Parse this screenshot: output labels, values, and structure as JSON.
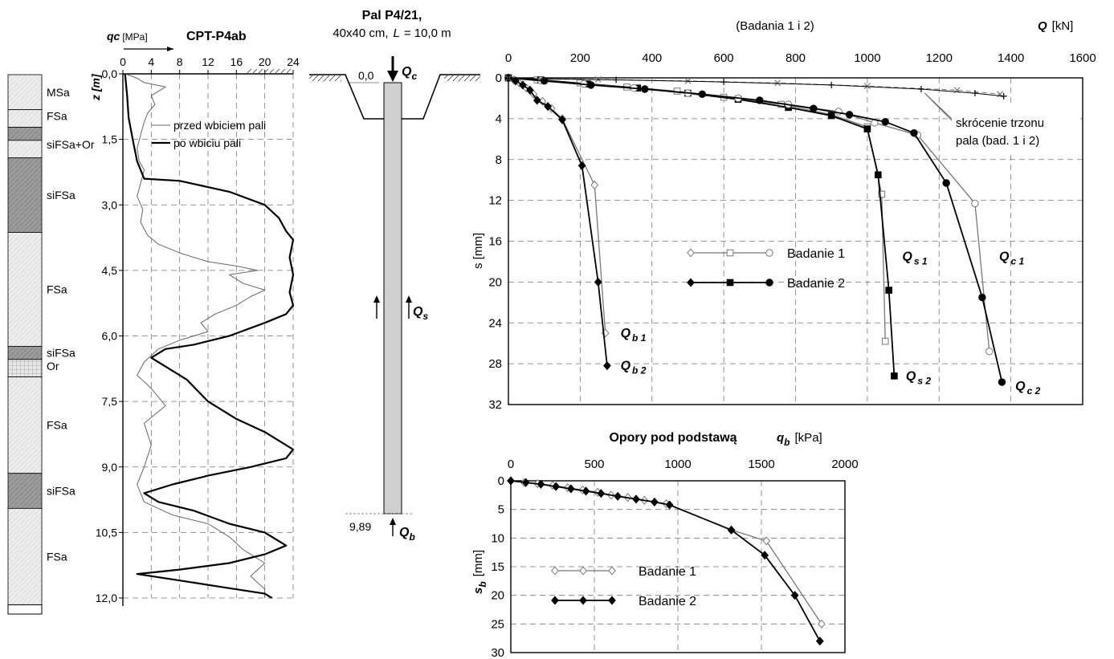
{
  "colors": {
    "badanie1": "#777777",
    "badanie2": "#000000",
    "before": "#666666",
    "after": "#000000",
    "pile": "#cfcfcf",
    "soil_light": "#ececec",
    "soil_dark": "#9a9a9a"
  },
  "soil_column": {
    "layers": [
      {
        "name": "MSa",
        "from": 0.0,
        "to": 0.8,
        "shade": "light"
      },
      {
        "name": "FSa",
        "from": 0.8,
        "to": 1.2,
        "shade": "light"
      },
      {
        "name": "",
        "from": 1.2,
        "to": 1.5,
        "shade": "dark"
      },
      {
        "name": "siFSa+Or",
        "from": 1.5,
        "to": 1.9,
        "shade": "light"
      },
      {
        "name": "siFSa",
        "from": 1.9,
        "to": 3.6,
        "shade": "dark"
      },
      {
        "name": "FSa",
        "from": 3.6,
        "to": 6.2,
        "shade": "light"
      },
      {
        "name": "siFSa",
        "from": 6.2,
        "to": 6.5,
        "shade": "dark"
      },
      {
        "name": "Or",
        "from": 6.5,
        "to": 6.9,
        "shade": "grid"
      },
      {
        "name": "FSa",
        "from": 6.9,
        "to": 9.1,
        "shade": "light"
      },
      {
        "name": "siFSa",
        "from": 9.1,
        "to": 9.9,
        "shade": "dark"
      },
      {
        "name": "FSa",
        "from": 9.9,
        "to": 12.1,
        "shade": "light"
      }
    ]
  },
  "pile_sketch": {
    "title": "Pal P4/21,",
    "subtitle_prefix": "40x40 cm,",
    "subtitle_l": "L",
    "subtitle_rest": "= 10,0 m",
    "top_level": "0,0",
    "bottom_level": "9,89",
    "force_top": "Q",
    "force_top_sub": "c",
    "force_shaft": "Q",
    "force_shaft_sub": "s",
    "force_base": "Q",
    "force_base_sub": "b"
  },
  "chart_data": [
    {
      "id": "cpt",
      "type": "line",
      "title": "CPT-P4ab",
      "xlabel_symbol": "qc",
      "xlabel_unit": "[MPa]",
      "ylabel": "z [m]",
      "xlim": [
        0,
        24
      ],
      "ylim": [
        0,
        12
      ],
      "y_inverted": true,
      "x_ticks": [
        0,
        4,
        8,
        12,
        16,
        20,
        24
      ],
      "y_ticks": [
        "0,0",
        "1,5",
        "3,0",
        "4,5",
        "6,0",
        "7,5",
        "9,0",
        "10,5",
        "12,0"
      ],
      "y_tick_values": [
        0,
        1.5,
        3,
        4.5,
        6,
        7.5,
        9,
        10.5,
        12
      ],
      "grid": true,
      "legend_position": "top-right",
      "series": [
        {
          "name": "przed wbiciem pali",
          "style": "thin",
          "points": [
            [
              0.3,
              0
            ],
            [
              2,
              0.1
            ],
            [
              3,
              0.2
            ],
            [
              6,
              0.3
            ],
            [
              4,
              0.5
            ],
            [
              4.5,
              0.7
            ],
            [
              3.5,
              0.9
            ],
            [
              3,
              1.1
            ],
            [
              2.5,
              1.4
            ],
            [
              2,
              1.7
            ],
            [
              2.3,
              2
            ],
            [
              3,
              2.2
            ],
            [
              2.5,
              2.5
            ],
            [
              2,
              2.8
            ],
            [
              2.8,
              3.1
            ],
            [
              2.5,
              3.4
            ],
            [
              3.5,
              3.7
            ],
            [
              5,
              3.9
            ],
            [
              8,
              4.1
            ],
            [
              12,
              4.3
            ],
            [
              16,
              4.4
            ],
            [
              19,
              4.5
            ],
            [
              15,
              4.6
            ],
            [
              17,
              4.8
            ],
            [
              20,
              4.95
            ],
            [
              18,
              5.1
            ],
            [
              16,
              5.3
            ],
            [
              13,
              5.5
            ],
            [
              11,
              5.7
            ],
            [
              12,
              5.9
            ],
            [
              8,
              6.1
            ],
            [
              5,
              6.3
            ],
            [
              3,
              6.6
            ],
            [
              2,
              6.9
            ],
            [
              4,
              7.2
            ],
            [
              6,
              7.6
            ],
            [
              3,
              8
            ],
            [
              4,
              8.5
            ],
            [
              3,
              9
            ],
            [
              2,
              9.4
            ],
            [
              3,
              9.8
            ],
            [
              7,
              10.1
            ],
            [
              12,
              10.3
            ],
            [
              15,
              10.6
            ],
            [
              17,
              10.9
            ],
            [
              20,
              11.2
            ],
            [
              18,
              11.5
            ],
            [
              20,
              11.8
            ],
            [
              20,
              12
            ]
          ]
        },
        {
          "name": "po wbiciu pali",
          "style": "thick",
          "points": [
            [
              0.3,
              0
            ],
            [
              0.6,
              0.5
            ],
            [
              0.8,
              1
            ],
            [
              1.5,
              1.6
            ],
            [
              2,
              2
            ],
            [
              3,
              2.4
            ],
            [
              8,
              2.45
            ],
            [
              15,
              2.7
            ],
            [
              20,
              3
            ],
            [
              22,
              3.3
            ],
            [
              23,
              3.6
            ],
            [
              24,
              3.8
            ],
            [
              23.5,
              4.2
            ],
            [
              24,
              4.6
            ],
            [
              23.5,
              5
            ],
            [
              24,
              5.3
            ],
            [
              23,
              5.5
            ],
            [
              20,
              5.7
            ],
            [
              15,
              6
            ],
            [
              10,
              6.2
            ],
            [
              6,
              6.3
            ],
            [
              4,
              6.5
            ],
            [
              6,
              6.7
            ],
            [
              9,
              7
            ],
            [
              12,
              7.5
            ],
            [
              16,
              7.9
            ],
            [
              20,
              8.2
            ],
            [
              24,
              8.6
            ],
            [
              23,
              8.8
            ],
            [
              18,
              9
            ],
            [
              12,
              9.2
            ],
            [
              7,
              9.4
            ],
            [
              3,
              9.6
            ],
            [
              5,
              9.8
            ],
            [
              10,
              10
            ],
            [
              15,
              10.3
            ],
            [
              20,
              10.5
            ],
            [
              23,
              10.8
            ],
            [
              20,
              11
            ],
            [
              15,
              11.2
            ],
            [
              8,
              11.35
            ],
            [
              2,
              11.45
            ],
            [
              8,
              11.6
            ],
            [
              14,
              11.75
            ],
            [
              20,
              11.9
            ],
            [
              21,
              12
            ]
          ]
        }
      ]
    },
    {
      "id": "load-settlement",
      "type": "line",
      "title": "(Badania 1 i 2)",
      "xlabel_symbol": "Q",
      "xlabel_unit": "[kN]",
      "ylabel": "s [mm]",
      "xlim": [
        0,
        1600
      ],
      "ylim": [
        0,
        32
      ],
      "y_inverted": true,
      "x_ticks": [
        0,
        200,
        400,
        600,
        800,
        1000,
        1200,
        1400,
        1600
      ],
      "y_ticks": [
        0,
        4,
        8,
        12,
        16,
        20,
        24,
        28,
        32
      ],
      "grid": true,
      "legend_position": "center",
      "legend": [
        {
          "name": "Badanie 1",
          "series": 1
        },
        {
          "name": "Badanie 2",
          "series": 2
        }
      ],
      "annotation": {
        "line1": "skrócenie trzonu",
        "line2": "pala (bad. 1 i 2)",
        "target": [
          1160,
          1.5
        ]
      },
      "curve_labels": [
        {
          "base": "Q",
          "sub": "b 1",
          "x": 290,
          "y": 25
        },
        {
          "base": "Q",
          "sub": "b 2",
          "x": 290,
          "y": 28.2
        },
        {
          "base": "Q",
          "sub": "s 1",
          "x": 1075,
          "y": 17.5
        },
        {
          "base": "Q",
          "sub": "s 2",
          "x": 1085,
          "y": 29.2
        },
        {
          "base": "Q",
          "sub": "c 1",
          "x": 1345,
          "y": 17.5
        },
        {
          "base": "Q",
          "sub": "c 2",
          "x": 1390,
          "y": 30.2
        }
      ],
      "series": [
        {
          "name": "Qb1",
          "test": 1,
          "marker": "diamond",
          "points": [
            [
              0,
              0
            ],
            [
              15,
              0.2
            ],
            [
              30,
              0.5
            ],
            [
              50,
              1
            ],
            [
              70,
              1.6
            ],
            [
              95,
              2.3
            ],
            [
              120,
              3
            ],
            [
              150,
              4
            ],
            [
              240,
              10.5
            ],
            [
              270,
              25
            ]
          ]
        },
        {
          "name": "Qb2",
          "test": 2,
          "marker": "diamond",
          "points": [
            [
              0,
              0
            ],
            [
              20,
              0.3
            ],
            [
              40,
              0.7
            ],
            [
              60,
              1.2
            ],
            [
              80,
              2.2
            ],
            [
              110,
              2.8
            ],
            [
              150,
              4.1
            ],
            [
              205,
              8.6
            ],
            [
              250,
              20
            ],
            [
              275,
              28.2
            ]
          ]
        },
        {
          "name": "Qs1",
          "test": 1,
          "marker": "square",
          "points": [
            [
              0,
              0
            ],
            [
              80,
              0.2
            ],
            [
              200,
              0.5
            ],
            [
              330,
              0.9
            ],
            [
              470,
              1.3
            ],
            [
              600,
              1.9
            ],
            [
              760,
              2.6
            ],
            [
              900,
              3.6
            ],
            [
              1000,
              4.8
            ],
            [
              1040,
              11.4
            ],
            [
              1050,
              25.8
            ]
          ]
        },
        {
          "name": "Qs2",
          "test": 2,
          "marker": "square",
          "points": [
            [
              0,
              0
            ],
            [
              90,
              0.2
            ],
            [
              220,
              0.6
            ],
            [
              360,
              1
            ],
            [
              500,
              1.5
            ],
            [
              640,
              2.1
            ],
            [
              780,
              2.9
            ],
            [
              900,
              3.7
            ],
            [
              1000,
              5
            ],
            [
              1030,
              9.5
            ],
            [
              1060,
              20.8
            ],
            [
              1075,
              29.2
            ]
          ]
        },
        {
          "name": "Qc1",
          "test": 1,
          "marker": "circle",
          "points": [
            [
              0,
              0
            ],
            [
              90,
              0.25
            ],
            [
              210,
              0.6
            ],
            [
              350,
              1
            ],
            [
              500,
              1.5
            ],
            [
              640,
              2
            ],
            [
              780,
              2.6
            ],
            [
              920,
              3.3
            ],
            [
              1020,
              4.4
            ],
            [
              1140,
              5.6
            ],
            [
              1300,
              12.3
            ],
            [
              1340,
              26.8
            ]
          ]
        },
        {
          "name": "Qc2",
          "test": 2,
          "marker": "circle",
          "points": [
            [
              0,
              0
            ],
            [
              100,
              0.3
            ],
            [
              230,
              0.7
            ],
            [
              380,
              1.1
            ],
            [
              540,
              1.6
            ],
            [
              700,
              2.2
            ],
            [
              850,
              3
            ],
            [
              950,
              3.6
            ],
            [
              1050,
              4.3
            ],
            [
              1130,
              5.4
            ],
            [
              1220,
              10.3
            ],
            [
              1320,
              21.5
            ],
            [
              1375,
              29.8
            ]
          ]
        },
        {
          "name": "skrocenie1",
          "test": 1,
          "marker": "x",
          "points": [
            [
              0,
              0.05
            ],
            [
              250,
              0.15
            ],
            [
              500,
              0.3
            ],
            [
              750,
              0.5
            ],
            [
              1000,
              0.8
            ],
            [
              1250,
              1.2
            ],
            [
              1370,
              1.6
            ]
          ]
        },
        {
          "name": "skrocenie2",
          "test": 2,
          "marker": "plus",
          "points": [
            [
              0,
              0.05
            ],
            [
              300,
              0.2
            ],
            [
              600,
              0.4
            ],
            [
              900,
              0.7
            ],
            [
              1150,
              1.1
            ],
            [
              1300,
              1.5
            ],
            [
              1380,
              1.8
            ]
          ]
        }
      ]
    },
    {
      "id": "base-resistance",
      "type": "line",
      "title": "Opory pod podstawą",
      "xlabel_symbol": "q",
      "xlabel_sub": "b",
      "xlabel_unit": "[kPa]",
      "ylabel_symbol": "s",
      "ylabel_sub": "b",
      "ylabel_unit": "[mm]",
      "xlim": [
        0,
        2000
      ],
      "ylim": [
        0,
        30
      ],
      "y_inverted": true,
      "x_ticks": [
        0,
        500,
        1000,
        1500,
        2000
      ],
      "y_ticks": [
        0,
        5,
        10,
        15,
        20,
        25,
        30
      ],
      "grid": true,
      "legend_position": "bottom-left",
      "series": [
        {
          "name": "Badanie 1",
          "test": 1,
          "marker": "diamond",
          "points": [
            [
              0,
              0
            ],
            [
              80,
              0.3
            ],
            [
              160,
              0.5
            ],
            [
              250,
              0.8
            ],
            [
              340,
              1.2
            ],
            [
              430,
              1.6
            ],
            [
              520,
              2
            ],
            [
              600,
              2.5
            ],
            [
              700,
              2.9
            ],
            [
              800,
              3.4
            ],
            [
              930,
              4
            ],
            [
              1320,
              8.6
            ],
            [
              1530,
              10.5
            ],
            [
              1860,
              25
            ]
          ]
        },
        {
          "name": "Badanie 2",
          "test": 2,
          "marker": "diamond",
          "points": [
            [
              0,
              0
            ],
            [
              90,
              0.3
            ],
            [
              180,
              0.6
            ],
            [
              270,
              1
            ],
            [
              360,
              1.4
            ],
            [
              450,
              1.8
            ],
            [
              540,
              2.2
            ],
            [
              640,
              2.7
            ],
            [
              750,
              3.2
            ],
            [
              860,
              3.7
            ],
            [
              950,
              4.2
            ],
            [
              1320,
              8.6
            ],
            [
              1520,
              13
            ],
            [
              1700,
              20
            ],
            [
              1850,
              28
            ]
          ]
        }
      ]
    }
  ]
}
